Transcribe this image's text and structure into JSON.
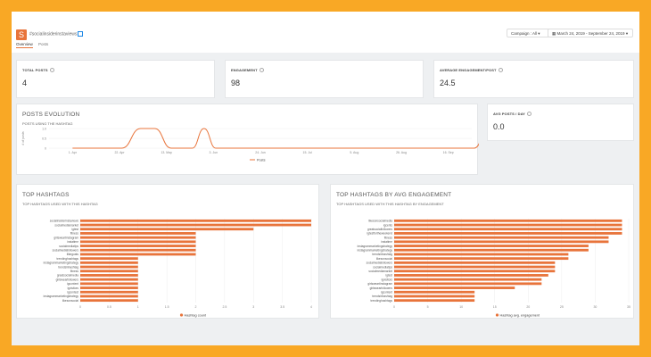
{
  "header": {
    "logo_letter": "S",
    "title": "#socialinsiderinstaviews",
    "tabs": [
      "Overview",
      "Posts"
    ],
    "campaign_select": "Campaign : All ▾",
    "date_range": "March 24, 2019 - September 24, 2019 ▾"
  },
  "kpis": [
    {
      "label": "TOTAL POSTS",
      "value": "4"
    },
    {
      "label": "ENGAGEMENT",
      "value": "98"
    },
    {
      "label": "AVERAGE ENGAGEMENT/POST",
      "value": "24.5"
    }
  ],
  "avg_posts": {
    "label": "AVG POSTS / DAY",
    "value": "0.0"
  },
  "posts_evolution": {
    "title": "POSTS EVOLUTION",
    "subtitle": "POSTS USING THE HASHTAG"
  },
  "top_hashtags": {
    "title": "TOP HASHTAGS",
    "subtitle": "TOP HASHTAGS USED WITH THIS HASHTAG"
  },
  "top_hashtags_eng": {
    "title": "TOP HASHTAGS BY AVG ENGAGEMENT",
    "subtitle": "TOP HASHTAGS USED WITH THIS HASHTAG BY ENGAGEMENT"
  },
  "colors": {
    "accent": "#e8743b",
    "series": "#e8743b",
    "background": "#f9a825"
  },
  "chart_data": [
    {
      "type": "area",
      "title": "POSTS EVOLUTION",
      "ylabel": "# of posts",
      "categories": [
        "1. Apr",
        "22. Apr",
        "13. May",
        "3. Jun",
        "24. Jun",
        "15. Jul",
        "5. Aug",
        "26. Aug",
        "16. Sep"
      ],
      "y_ticks": [
        "1.0",
        "0.5",
        "0"
      ],
      "ylim": [
        0,
        1
      ],
      "series": [
        {
          "name": "Posts",
          "points": [
            [
              0,
              0
            ],
            [
              1.05,
              0
            ],
            [
              1.45,
              1
            ],
            [
              1.75,
              1
            ],
            [
              2.1,
              0
            ],
            [
              2.55,
              0
            ],
            [
              2.8,
              1
            ],
            [
              3.05,
              0
            ],
            [
              8.55,
              0
            ],
            [
              8.85,
              1
            ]
          ]
        }
      ],
      "legend": "bottom"
    },
    {
      "type": "bar",
      "orientation": "horizontal",
      "categories": [
        "socialinsiderinstaviews",
        "socialmediamarket",
        "igtest",
        "fitness",
        "girlsweartinstagram",
        "instatime",
        "socialmediatips",
        "socialmediafollowers",
        "ilikegoats",
        "trendinghashtags",
        "instagrammarketingstrategy",
        "trendsinhashtag",
        "fitness",
        "greatsocialmedia",
        "girlswearfollowers",
        "igcontent",
        "igvisitors",
        "igcontest",
        "instagrammarketingstrategy",
        "likesonsocial"
      ],
      "values": [
        4,
        4,
        3,
        2,
        2,
        2,
        2,
        2,
        2,
        1,
        1,
        1,
        1,
        1,
        1,
        1,
        1,
        1,
        1,
        1
      ],
      "x_ticks": [
        "0",
        "0.5",
        "1",
        "1.5",
        "2",
        "2.5",
        "3",
        "3.5",
        "4"
      ],
      "xlim": [
        0,
        4
      ],
      "series": [
        {
          "name": "Hashtag count"
        }
      ],
      "legend": "bottom"
    },
    {
      "type": "bar",
      "orientation": "horizontal",
      "categories": [
        "likesonsocialmedia",
        "igcents",
        "greatsocialfollowers",
        "igtestfortheweekend",
        "fitness",
        "instatime",
        "instagrammarketingstrategy",
        "instagrammarketingstrategy",
        "trendsinhashtag",
        "likesonsocial",
        "socialmediafollowers",
        "socialmediatips",
        "socialmediamarket",
        "igtest",
        "igvisitors",
        "girlsweartinstagram",
        "girlswearfollowers",
        "igcontent",
        "trendsinhashtag",
        "trendinghashtags"
      ],
      "values": [
        34,
        34,
        34,
        34,
        32,
        32,
        29,
        29,
        26,
        26,
        24,
        24,
        24,
        23,
        22,
        22,
        18,
        12,
        12,
        12
      ],
      "x_ticks": [
        "0",
        "5",
        "10",
        "15",
        "20",
        "25",
        "30",
        "35"
      ],
      "xlim": [
        0,
        35
      ],
      "series": [
        {
          "name": "Hashtag avg. engagement"
        }
      ],
      "legend": "bottom"
    }
  ]
}
